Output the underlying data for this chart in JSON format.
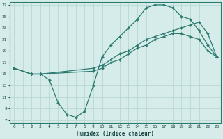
{
  "xlabel": "Humidex (Indice chaleur)",
  "bg_color": "#d6ecea",
  "grid_color": "#b8d8d4",
  "line_color": "#2a7a70",
  "xlim": [
    -0.5,
    23.5
  ],
  "ylim": [
    6.5,
    27.5
  ],
  "yticks": [
    7,
    9,
    11,
    13,
    15,
    17,
    19,
    21,
    23,
    25,
    27
  ],
  "xticks": [
    0,
    1,
    2,
    3,
    4,
    5,
    6,
    7,
    8,
    9,
    10,
    11,
    12,
    13,
    14,
    15,
    16,
    17,
    18,
    19,
    20,
    21,
    22,
    23
  ],
  "line1_x": [
    0,
    2,
    3,
    4,
    5,
    6,
    7,
    8,
    9,
    10,
    11,
    12,
    13,
    14,
    15,
    16,
    17,
    18,
    19,
    20,
    21,
    22,
    23
  ],
  "line1_y": [
    16,
    15,
    15,
    14,
    10,
    8,
    7.5,
    8.5,
    13,
    18,
    20,
    21.5,
    23,
    24.5,
    26.5,
    27,
    27,
    26.5,
    25,
    24.5,
    22.5,
    20,
    18
  ],
  "line2_x": [
    0,
    2,
    3,
    9,
    10,
    11,
    12,
    13,
    14,
    15,
    16,
    17,
    18,
    19,
    20,
    21,
    22,
    23
  ],
  "line2_y": [
    16,
    15,
    15,
    16,
    16.5,
    17.5,
    18.5,
    19,
    20,
    21,
    21.5,
    22,
    22.5,
    23,
    23.5,
    24,
    22,
    18
  ],
  "line3_x": [
    0,
    2,
    3,
    9,
    10,
    11,
    12,
    13,
    14,
    15,
    16,
    17,
    18,
    19,
    20,
    21,
    22,
    23
  ],
  "line3_y": [
    16,
    15,
    15,
    15.5,
    16,
    17,
    17.5,
    18.5,
    19.5,
    20,
    21,
    21.5,
    22,
    22,
    21.5,
    21,
    19,
    18
  ]
}
